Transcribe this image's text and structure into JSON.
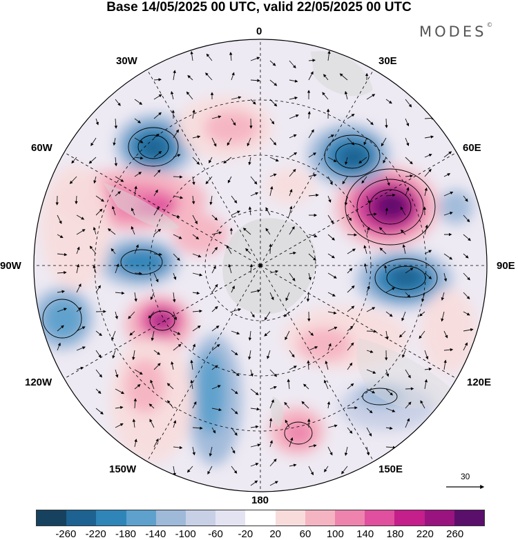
{
  "title": "Base 14/05/2025 00 UTC, valid 22/05/2025 00 UTC",
  "brand": {
    "name": "MODES",
    "mark": "©"
  },
  "longitude_labels": {
    "lon_0": "0",
    "lon_30e": "30E",
    "lon_60e": "60E",
    "lon_90e": "90E",
    "lon_120e": "120E",
    "lon_150e": "150E",
    "lon_180": "180",
    "lon_150w": "150W",
    "lon_120w": "120W",
    "lon_90w": "90W",
    "lon_60w": "60W",
    "lon_30w": "30W"
  },
  "colorbar": {
    "colors": [
      "#16425f",
      "#1d6290",
      "#2f85b8",
      "#5da1cc",
      "#9fb9d9",
      "#c8d0e6",
      "#e4e3f1",
      "#ffffff",
      "#f8dcdc",
      "#f5b4c2",
      "#ee84ad",
      "#e0509e",
      "#c41f8b",
      "#9a1480",
      "#5a0f6b"
    ],
    "tick_labels": [
      "-260",
      "-220",
      "-180",
      "-140",
      "-100",
      "-60",
      "-20",
      "20",
      "60",
      "100",
      "140",
      "180",
      "220",
      "260"
    ]
  },
  "reference_vector": {
    "label": "30"
  }
}
